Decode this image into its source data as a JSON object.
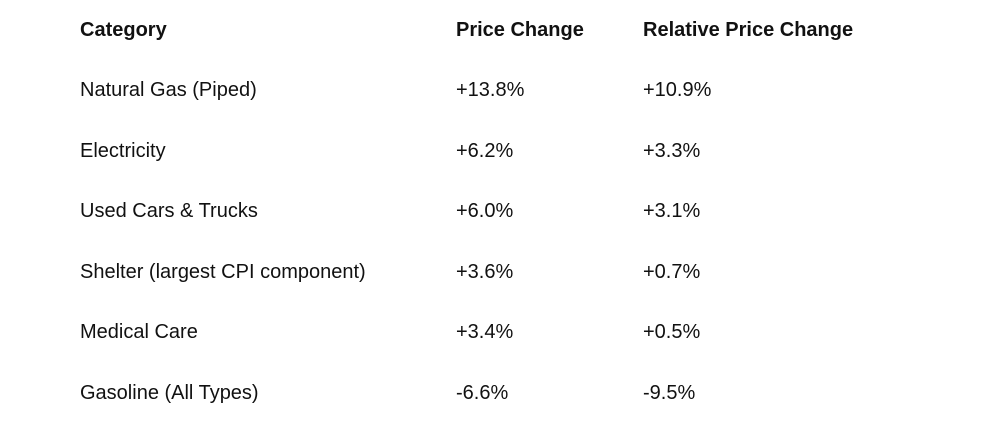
{
  "table": {
    "header": [
      "Category",
      "Price Change",
      "Relative Price Change"
    ],
    "rows": [
      [
        "Natural Gas (Piped)",
        "+13.8%",
        "+10.9%"
      ],
      [
        "Electricity",
        "+6.2%",
        "+3.3%"
      ],
      [
        "Used Cars & Trucks",
        "+6.0%",
        "+3.1%"
      ],
      [
        "Shelter (largest CPI component)",
        "+3.6%",
        "+0.7%"
      ],
      [
        "Medical Care",
        "+3.4%",
        "+0.5%"
      ],
      [
        "Gasoline (All Types)",
        "-6.6%",
        "-9.5%"
      ]
    ]
  }
}
